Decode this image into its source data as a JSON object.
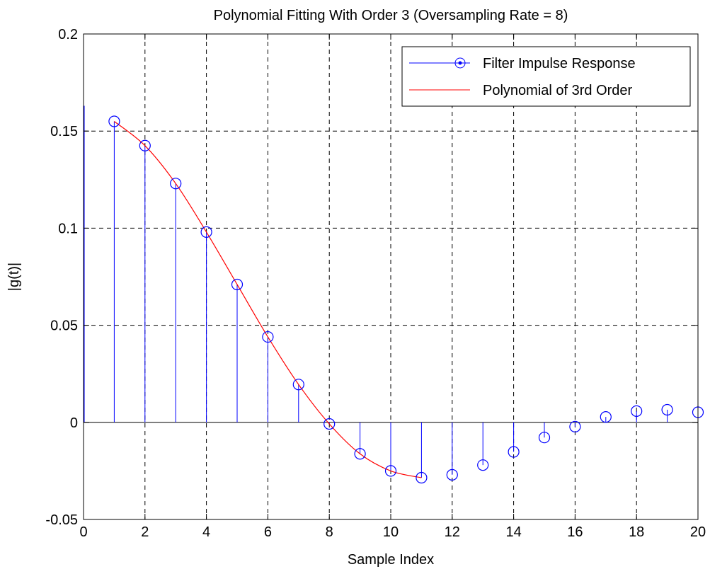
{
  "chart_data": {
    "type": "line",
    "title": "Polynomial Fitting With Order 3 (Oversampling Rate = 8)",
    "xlabel": "Sample Index",
    "ylabel": "|g(t)|",
    "xlim": [
      0,
      20
    ],
    "ylim": [
      -0.05,
      0.2
    ],
    "xticks": [
      "0",
      "2",
      "4",
      "6",
      "8",
      "10",
      "12",
      "14",
      "16",
      "18",
      "20"
    ],
    "yticks": [
      "-0.05",
      "0",
      "0.05",
      "0.1",
      "0.15",
      "0.2"
    ],
    "xtick_values": [
      0,
      2,
      4,
      6,
      8,
      10,
      12,
      14,
      16,
      18,
      20
    ],
    "ytick_values": [
      -0.05,
      0,
      0.05,
      0.1,
      0.15,
      0.2
    ],
    "grid": true,
    "legend_position": "top-right",
    "series": [
      {
        "name": "Filter Impulse Response",
        "kind": "stem",
        "color": "#0000ff",
        "x": [
          1,
          2,
          3,
          4,
          5,
          6,
          7,
          8,
          9,
          10,
          11,
          12,
          13,
          14,
          15,
          16,
          17,
          18,
          19,
          20
        ],
        "values": [
          0.155,
          0.1425,
          0.123,
          0.098,
          0.071,
          0.044,
          0.0195,
          -0.0008,
          -0.0162,
          -0.025,
          -0.0285,
          -0.027,
          -0.022,
          -0.0152,
          -0.0078,
          -0.0022,
          0.0028,
          0.0058,
          0.0065,
          0.0052
        ]
      },
      {
        "name": "Polynomial of 3rd Order",
        "kind": "line",
        "color": "#ff0000",
        "x": [
          1,
          2,
          3,
          4,
          5,
          6,
          7,
          8,
          9,
          10,
          11
        ],
        "values": [
          0.155,
          0.1425,
          0.123,
          0.098,
          0.071,
          0.044,
          0.0195,
          -0.0008,
          -0.0162,
          -0.025,
          -0.0285
        ]
      }
    ],
    "left_edge_stem": {
      "x": 0,
      "value": 0.163
    }
  }
}
